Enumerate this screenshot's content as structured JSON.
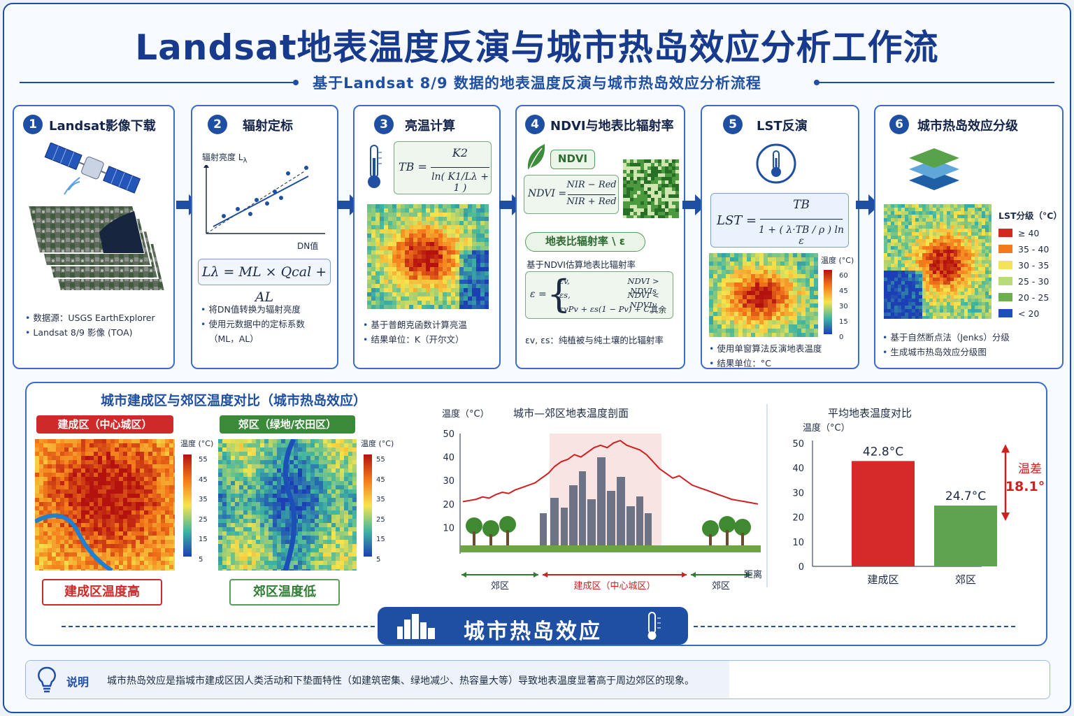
{
  "title": "Landsat地表温度反演与城市热岛效应分析工作流",
  "subtitle": "基于Landsat 8/9 数据的地表温度反演与城市热岛效应分析流程",
  "steps": [
    {
      "num": "1",
      "title": "Landsat影像下载",
      "bullets": [
        "数据源：USGS EarthExplorer",
        "Landsat 8/9 影像 (TOA)"
      ]
    },
    {
      "num": "2",
      "title": "辐射定标",
      "axis_y": "辐射亮度 L",
      "axis_y_sub": "λ",
      "axis_x": "DN值",
      "formula": "Lλ = ML × Qcal + AL",
      "bullets": [
        "将DN值转换为辐射亮度",
        "使用元数据中的定标系数",
        "（ML，AL）"
      ]
    },
    {
      "num": "3",
      "title": "亮温计算",
      "formula_lhs": "TB =",
      "formula_num": "K2",
      "formula_den": "ln( K1/Lλ + 1 )",
      "bullets": [
        "基于普朗克函数计算亮温",
        "结果单位：K（开尔文）"
      ]
    },
    {
      "num": "4",
      "title": "NDVI与地表比辐射率",
      "ndvi_pill": "NDVI",
      "ndvi_lhs": "NDVI =",
      "ndvi_num": "NIR − Red",
      "ndvi_den": "NIR + Red",
      "emis_pill": "地表比辐射率 \\ ε",
      "emis_desc": "基于NDVI估算地表比辐射率",
      "emis_cases": [
        [
          "εv,",
          "NDVI > NDVIs"
        ],
        [
          "εs,",
          "NDVI < NDVIv"
        ],
        [
          "εvPv + εs(1 − Pv) + C,",
          "其余"
        ]
      ],
      "emis_note": "εv, εs：纯植被与纯土壤的比辐射率"
    },
    {
      "num": "5",
      "title": "LST反演",
      "formula_lhs": "LST =",
      "formula_num": "TB",
      "formula_den": "1 + ( λ·TB / ρ ) ln ε",
      "legend_title": "温度 (°C)",
      "legend_ticks": [
        "60",
        "45",
        "30",
        "15",
        "0"
      ],
      "bullets": [
        "使用单窗算法反演地表温度",
        "结果单位：°C"
      ]
    },
    {
      "num": "6",
      "title": "城市热岛效应分级",
      "legend_title": "LST分级（°C）",
      "classes": [
        {
          "label": "≥ 40",
          "color": "#d42a1e"
        },
        {
          "label": "35 - 40",
          "color": "#f07a1c"
        },
        {
          "label": "30 - 35",
          "color": "#f4e25a"
        },
        {
          "label": "25 - 30",
          "color": "#b9dc7a"
        },
        {
          "label": "20 - 25",
          "color": "#6ab04c"
        },
        {
          "label": "< 20",
          "color": "#1d4fb8"
        }
      ],
      "bullets": [
        "基于自然断点法（Jenks）分级",
        "生成城市热岛效应分级图"
      ]
    }
  ],
  "comparison": {
    "title": "城市建成区与郊区温度对比（城市热岛效应）",
    "urban_tag": "建成区（中心城区）",
    "rural_tag": "郊区（绿地/农田区）",
    "legend_title": "温度 (°C)",
    "legend_ticks": [
      "55",
      "45",
      "35",
      "25",
      "15",
      "5"
    ],
    "urban_label": "建成区温度高",
    "rural_label": "郊区温度低"
  },
  "chart_data": [
    {
      "type": "line",
      "title": "城市—郊区地表温度剖面",
      "ylabel": "温度（°C）",
      "xlabel": "距离",
      "ylim": [
        0,
        50
      ],
      "yticks": [
        10,
        20,
        30,
        40,
        50
      ],
      "zones": [
        "郊区",
        "建成区（中心城区）",
        "郊区"
      ],
      "series": [
        {
          "values": [
            21,
            21.5,
            22,
            23,
            22.5,
            24,
            25,
            24.5,
            26,
            27,
            28,
            29,
            31,
            33,
            36,
            38,
            39,
            41,
            40,
            42,
            44,
            45,
            44,
            46,
            47,
            45,
            44,
            43,
            41,
            38,
            35,
            33,
            31,
            32,
            30,
            28,
            27,
            26,
            25,
            24,
            23,
            22,
            21.5,
            21,
            20.5,
            20
          ]
        }
      ]
    },
    {
      "type": "bar",
      "title": "平均地表温度对比",
      "ylabel": "温度（°C）",
      "ylim": [
        0,
        50
      ],
      "yticks": [
        0,
        10,
        20,
        30,
        40,
        50
      ],
      "categories": [
        "建成区",
        "郊区"
      ],
      "values": [
        42.8,
        24.7
      ],
      "value_labels": [
        "42.8°C",
        "24.7°C"
      ],
      "colors": [
        "#d42a2a",
        "#5fa350"
      ],
      "diff_label": "温差",
      "diff_value": "18.1°C"
    }
  ],
  "banner": "城市热岛效应",
  "note": {
    "label": "说明",
    "text": "城市热岛效应是指城市建成区因人类活动和下垫面特性（如建筑密集、绿地减少、热容量大等）导致地表温度显著高于周边郊区的现象。"
  }
}
